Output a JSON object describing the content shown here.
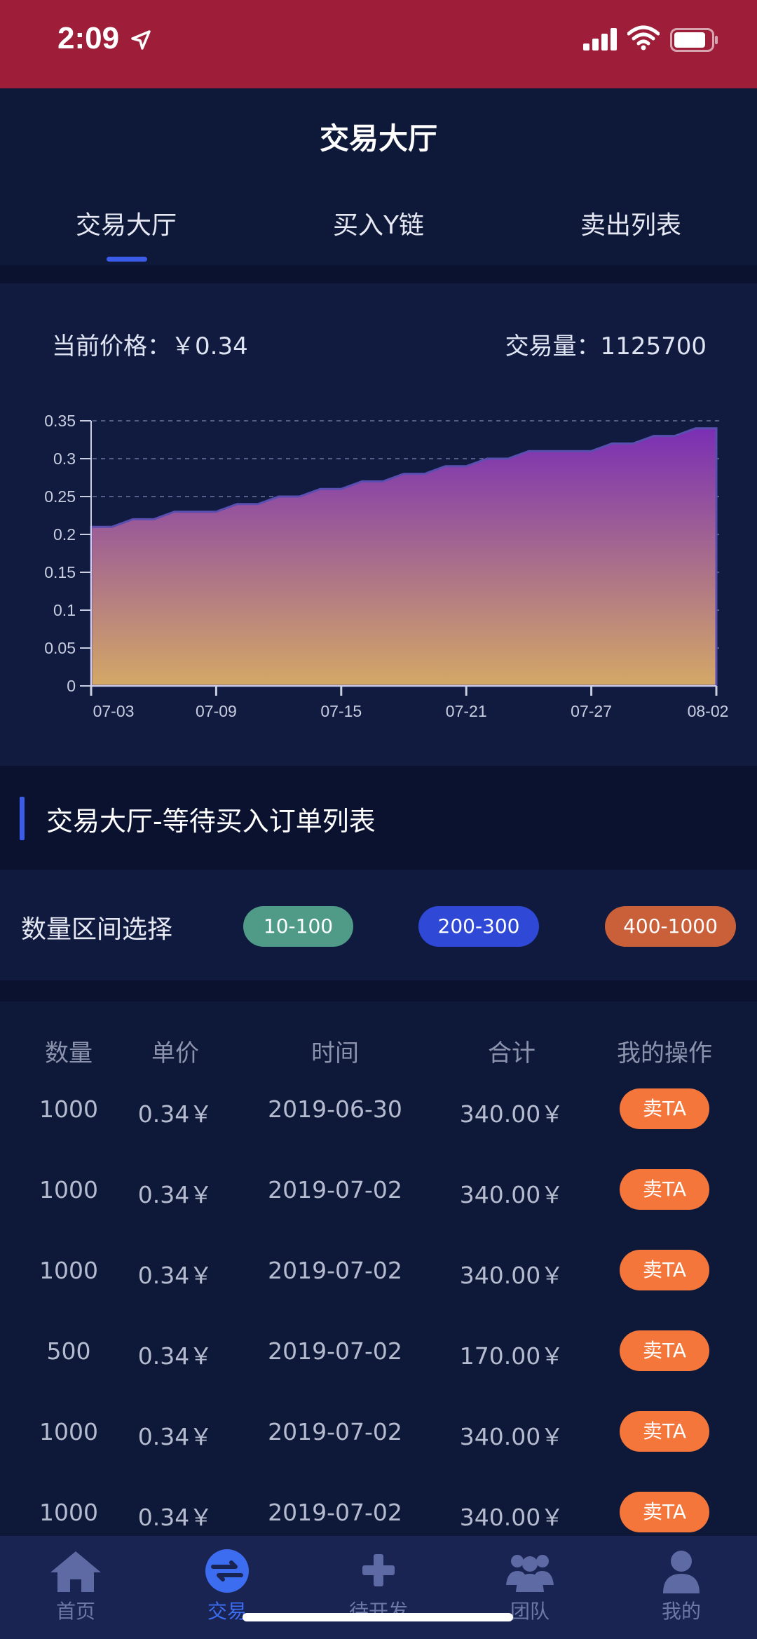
{
  "status_bar": {
    "time": "2:09"
  },
  "header": {
    "title": "交易大厅",
    "tabs": [
      {
        "label": "交易大厅",
        "active": true
      },
      {
        "label": "买入Y链",
        "active": false
      },
      {
        "label": "卖出列表",
        "active": false
      }
    ]
  },
  "price": {
    "current_price_label": "当前价格：￥0.34",
    "volume_label": "交易量：1125700"
  },
  "chart_data": {
    "type": "area",
    "title": "",
    "xlabel": "",
    "ylabel": "",
    "x_ticks": [
      "07-03",
      "07-09",
      "07-15",
      "07-21",
      "07-27",
      "08-02"
    ],
    "y_ticks": [
      "0",
      "0.05",
      "0.1",
      "0.15",
      "0.2",
      "0.25",
      "0.3",
      "0.35"
    ],
    "ylim": [
      0,
      0.35
    ],
    "x": [
      "07-03",
      "07-04",
      "07-05",
      "07-06",
      "07-07",
      "07-08",
      "07-09",
      "07-10",
      "07-11",
      "07-12",
      "07-13",
      "07-14",
      "07-15",
      "07-16",
      "07-17",
      "07-18",
      "07-19",
      "07-20",
      "07-21",
      "07-22",
      "07-23",
      "07-24",
      "07-25",
      "07-26",
      "07-27",
      "07-28",
      "07-29",
      "07-30",
      "07-31",
      "08-01",
      "08-02"
    ],
    "values": [
      0.21,
      0.21,
      0.22,
      0.22,
      0.23,
      0.23,
      0.23,
      0.24,
      0.24,
      0.25,
      0.25,
      0.26,
      0.26,
      0.27,
      0.27,
      0.28,
      0.28,
      0.29,
      0.29,
      0.3,
      0.3,
      0.31,
      0.31,
      0.31,
      0.31,
      0.32,
      0.32,
      0.33,
      0.33,
      0.34,
      0.34
    ],
    "colors": {
      "top": "#7a2eb4",
      "bottom": "#d4a866"
    }
  },
  "orders_section": {
    "title": "交易大厅-等待买入订单列表"
  },
  "range_filter": {
    "label": "数量区间选择",
    "options": [
      {
        "label": "10-100",
        "color": "#4f9b88"
      },
      {
        "label": "200-300",
        "color": "#2f48d6"
      },
      {
        "label": "400-1000",
        "color": "#c9603a"
      }
    ]
  },
  "table": {
    "headers": [
      "数量",
      "单价",
      "时间",
      "合计",
      "我的操作"
    ],
    "action_label": "卖TA",
    "rows": [
      {
        "qty": "1000",
        "price": "0.34￥",
        "time": "2019-06-30",
        "total": "340.00￥"
      },
      {
        "qty": "1000",
        "price": "0.34￥",
        "time": "2019-07-02",
        "total": "340.00￥"
      },
      {
        "qty": "1000",
        "price": "0.34￥",
        "time": "2019-07-02",
        "total": "340.00￥"
      },
      {
        "qty": "500",
        "price": "0.34￥",
        "time": "2019-07-02",
        "total": "170.00￥"
      },
      {
        "qty": "1000",
        "price": "0.34￥",
        "time": "2019-07-02",
        "total": "340.00￥"
      },
      {
        "qty": "1000",
        "price": "0.34￥",
        "time": "2019-07-02",
        "total": "340.00￥"
      }
    ]
  },
  "bottom_nav": [
    {
      "label": "首页",
      "icon": "home-icon"
    },
    {
      "label": "交易",
      "icon": "exchange-icon",
      "active": true
    },
    {
      "label": "待开发",
      "icon": "plus-icon"
    },
    {
      "label": "团队",
      "icon": "team-icon"
    },
    {
      "label": "我的",
      "icon": "user-icon"
    }
  ]
}
